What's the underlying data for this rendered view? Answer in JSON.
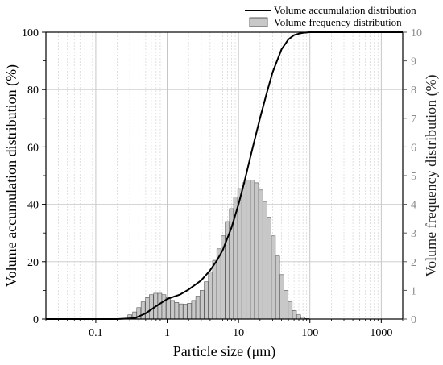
{
  "chart_data": {
    "type": "bar+line",
    "xlabel": "Particle size (μm)",
    "ylabel_left": "Volume accumulation distribution (%)",
    "ylabel_right": "Volume frequency distribution (%)",
    "x_scale": "log",
    "xlim": [
      0.02,
      2000
    ],
    "ylim_left": [
      0,
      100
    ],
    "ylim_right": [
      0,
      10
    ],
    "x_tick_labels": [
      "0.1",
      "1",
      "10",
      "100",
      "1000"
    ],
    "x_tick_values": [
      0.1,
      1,
      10,
      100,
      1000
    ],
    "y_left_tick_labels": [
      "0",
      "20",
      "40",
      "60",
      "80",
      "100"
    ],
    "y_left_tick_values": [
      0,
      20,
      40,
      60,
      80,
      100
    ],
    "y_right_tick_labels": [
      "0",
      "1",
      "2",
      "3",
      "4",
      "5",
      "6",
      "7",
      "8",
      "9",
      "10"
    ],
    "y_right_tick_values": [
      0,
      1,
      2,
      3,
      4,
      5,
      6,
      7,
      8,
      9,
      10
    ],
    "grid": true,
    "legend_position": "top-right",
    "series": [
      {
        "name": "Volume accumulation distribution",
        "type": "line",
        "axis": "left",
        "color": "#000000",
        "x": [
          0.02,
          0.2,
          0.35,
          0.5,
          0.7,
          1.0,
          1.5,
          2,
          3,
          4,
          5,
          6,
          8,
          10,
          12,
          15,
          20,
          25,
          30,
          40,
          50,
          60,
          70,
          80,
          100,
          150,
          200,
          2000
        ],
        "y": [
          0,
          0,
          0.3,
          2.0,
          4.5,
          7.0,
          8.5,
          10.3,
          13.5,
          17.0,
          20.5,
          24.0,
          32.0,
          40.0,
          47.5,
          57.5,
          70.0,
          79.0,
          86.0,
          94.0,
          97.5,
          99.0,
          99.5,
          99.8,
          100,
          100,
          100,
          100
        ]
      },
      {
        "name": "Volume frequency distribution",
        "type": "bar",
        "axis": "right",
        "color": "#c8c8c8",
        "x": [
          0.3,
          0.35,
          0.4,
          0.46,
          0.53,
          0.6,
          0.69,
          0.79,
          0.9,
          1.04,
          1.19,
          1.36,
          1.56,
          1.79,
          2.05,
          2.35,
          2.69,
          3.08,
          3.53,
          4.04,
          4.63,
          5.3,
          6.07,
          6.95,
          7.96,
          9.11,
          10.4,
          11.9,
          13.7,
          15.7,
          17.9,
          20.5,
          23.5,
          26.9,
          30.8,
          35.3,
          40.4,
          46.3,
          53.0,
          60.7,
          69.5,
          79.6,
          91.1
        ],
        "y": [
          0.15,
          0.25,
          0.4,
          0.6,
          0.75,
          0.85,
          0.9,
          0.9,
          0.85,
          0.75,
          0.65,
          0.58,
          0.53,
          0.52,
          0.55,
          0.65,
          0.8,
          1.0,
          1.3,
          1.65,
          2.05,
          2.45,
          2.9,
          3.4,
          3.85,
          4.25,
          4.55,
          4.75,
          4.85,
          4.85,
          4.75,
          4.5,
          4.1,
          3.55,
          2.9,
          2.2,
          1.55,
          1.0,
          0.6,
          0.3,
          0.15,
          0.07,
          0.02
        ]
      }
    ]
  }
}
